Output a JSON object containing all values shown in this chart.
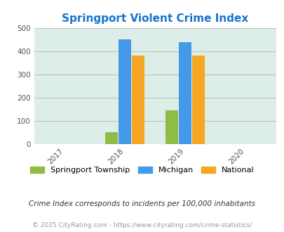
{
  "title": "Springport Violent Crime Index",
  "title_color": "#1874CD",
  "years": [
    2017,
    2018,
    2019,
    2020
  ],
  "x_tick_labels": [
    "2017",
    "2018",
    "2019",
    "2020"
  ],
  "categories": [
    "Springport Township",
    "Michigan",
    "National"
  ],
  "values": {
    "2018": [
      50,
      450,
      382
    ],
    "2019": [
      143,
      438,
      382
    ]
  },
  "bar_colors": [
    "#8fbc45",
    "#4499e8",
    "#f5a623"
  ],
  "ylim": [
    0,
    500
  ],
  "yticks": [
    0,
    100,
    200,
    300,
    400,
    500
  ],
  "background_color": "#ddeee8",
  "legend_labels": [
    "Springport Township",
    "Michigan",
    "National"
  ],
  "footnote1": "Crime Index corresponds to incidents per 100,000 inhabitants",
  "footnote2": "© 2025 CityRating.com - https://www.cityrating.com/crime-statistics/",
  "bar_width": 0.22,
  "group_positions": [
    2018,
    2019
  ]
}
